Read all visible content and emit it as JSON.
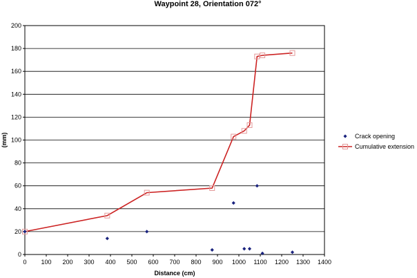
{
  "chart_data": {
    "type": "line",
    "title": "Waypoint 28, Orientation 072°",
    "xlabel": "Distance (cm)",
    "ylabel": "(mm)",
    "xlim": [
      0,
      1400
    ],
    "ylim": [
      0,
      200
    ],
    "xticks": [
      0,
      100,
      200,
      300,
      400,
      500,
      600,
      700,
      800,
      900,
      1000,
      1100,
      1200,
      1300,
      1400
    ],
    "yticks": [
      0,
      20,
      40,
      60,
      80,
      100,
      120,
      140,
      160,
      180,
      200
    ],
    "grid": "horizontal",
    "legend_position": "right",
    "series": [
      {
        "name": "Crack opening",
        "style": "scatter",
        "marker": "diamond",
        "color": "#1a237e",
        "x": [
          0,
          385,
          570,
          875,
          975,
          1025,
          1050,
          1085,
          1110,
          1250
        ],
        "y": [
          20,
          14,
          20,
          4,
          45,
          5,
          5,
          60,
          1,
          2
        ]
      },
      {
        "name": "Cumulative extension",
        "style": "line",
        "marker": "square-open",
        "color": "#cc2222",
        "x": [
          0,
          385,
          570,
          875,
          975,
          1025,
          1050,
          1085,
          1110,
          1250
        ],
        "y": [
          20,
          34,
          54,
          58,
          103,
          108,
          113,
          173,
          174,
          176
        ]
      }
    ]
  }
}
